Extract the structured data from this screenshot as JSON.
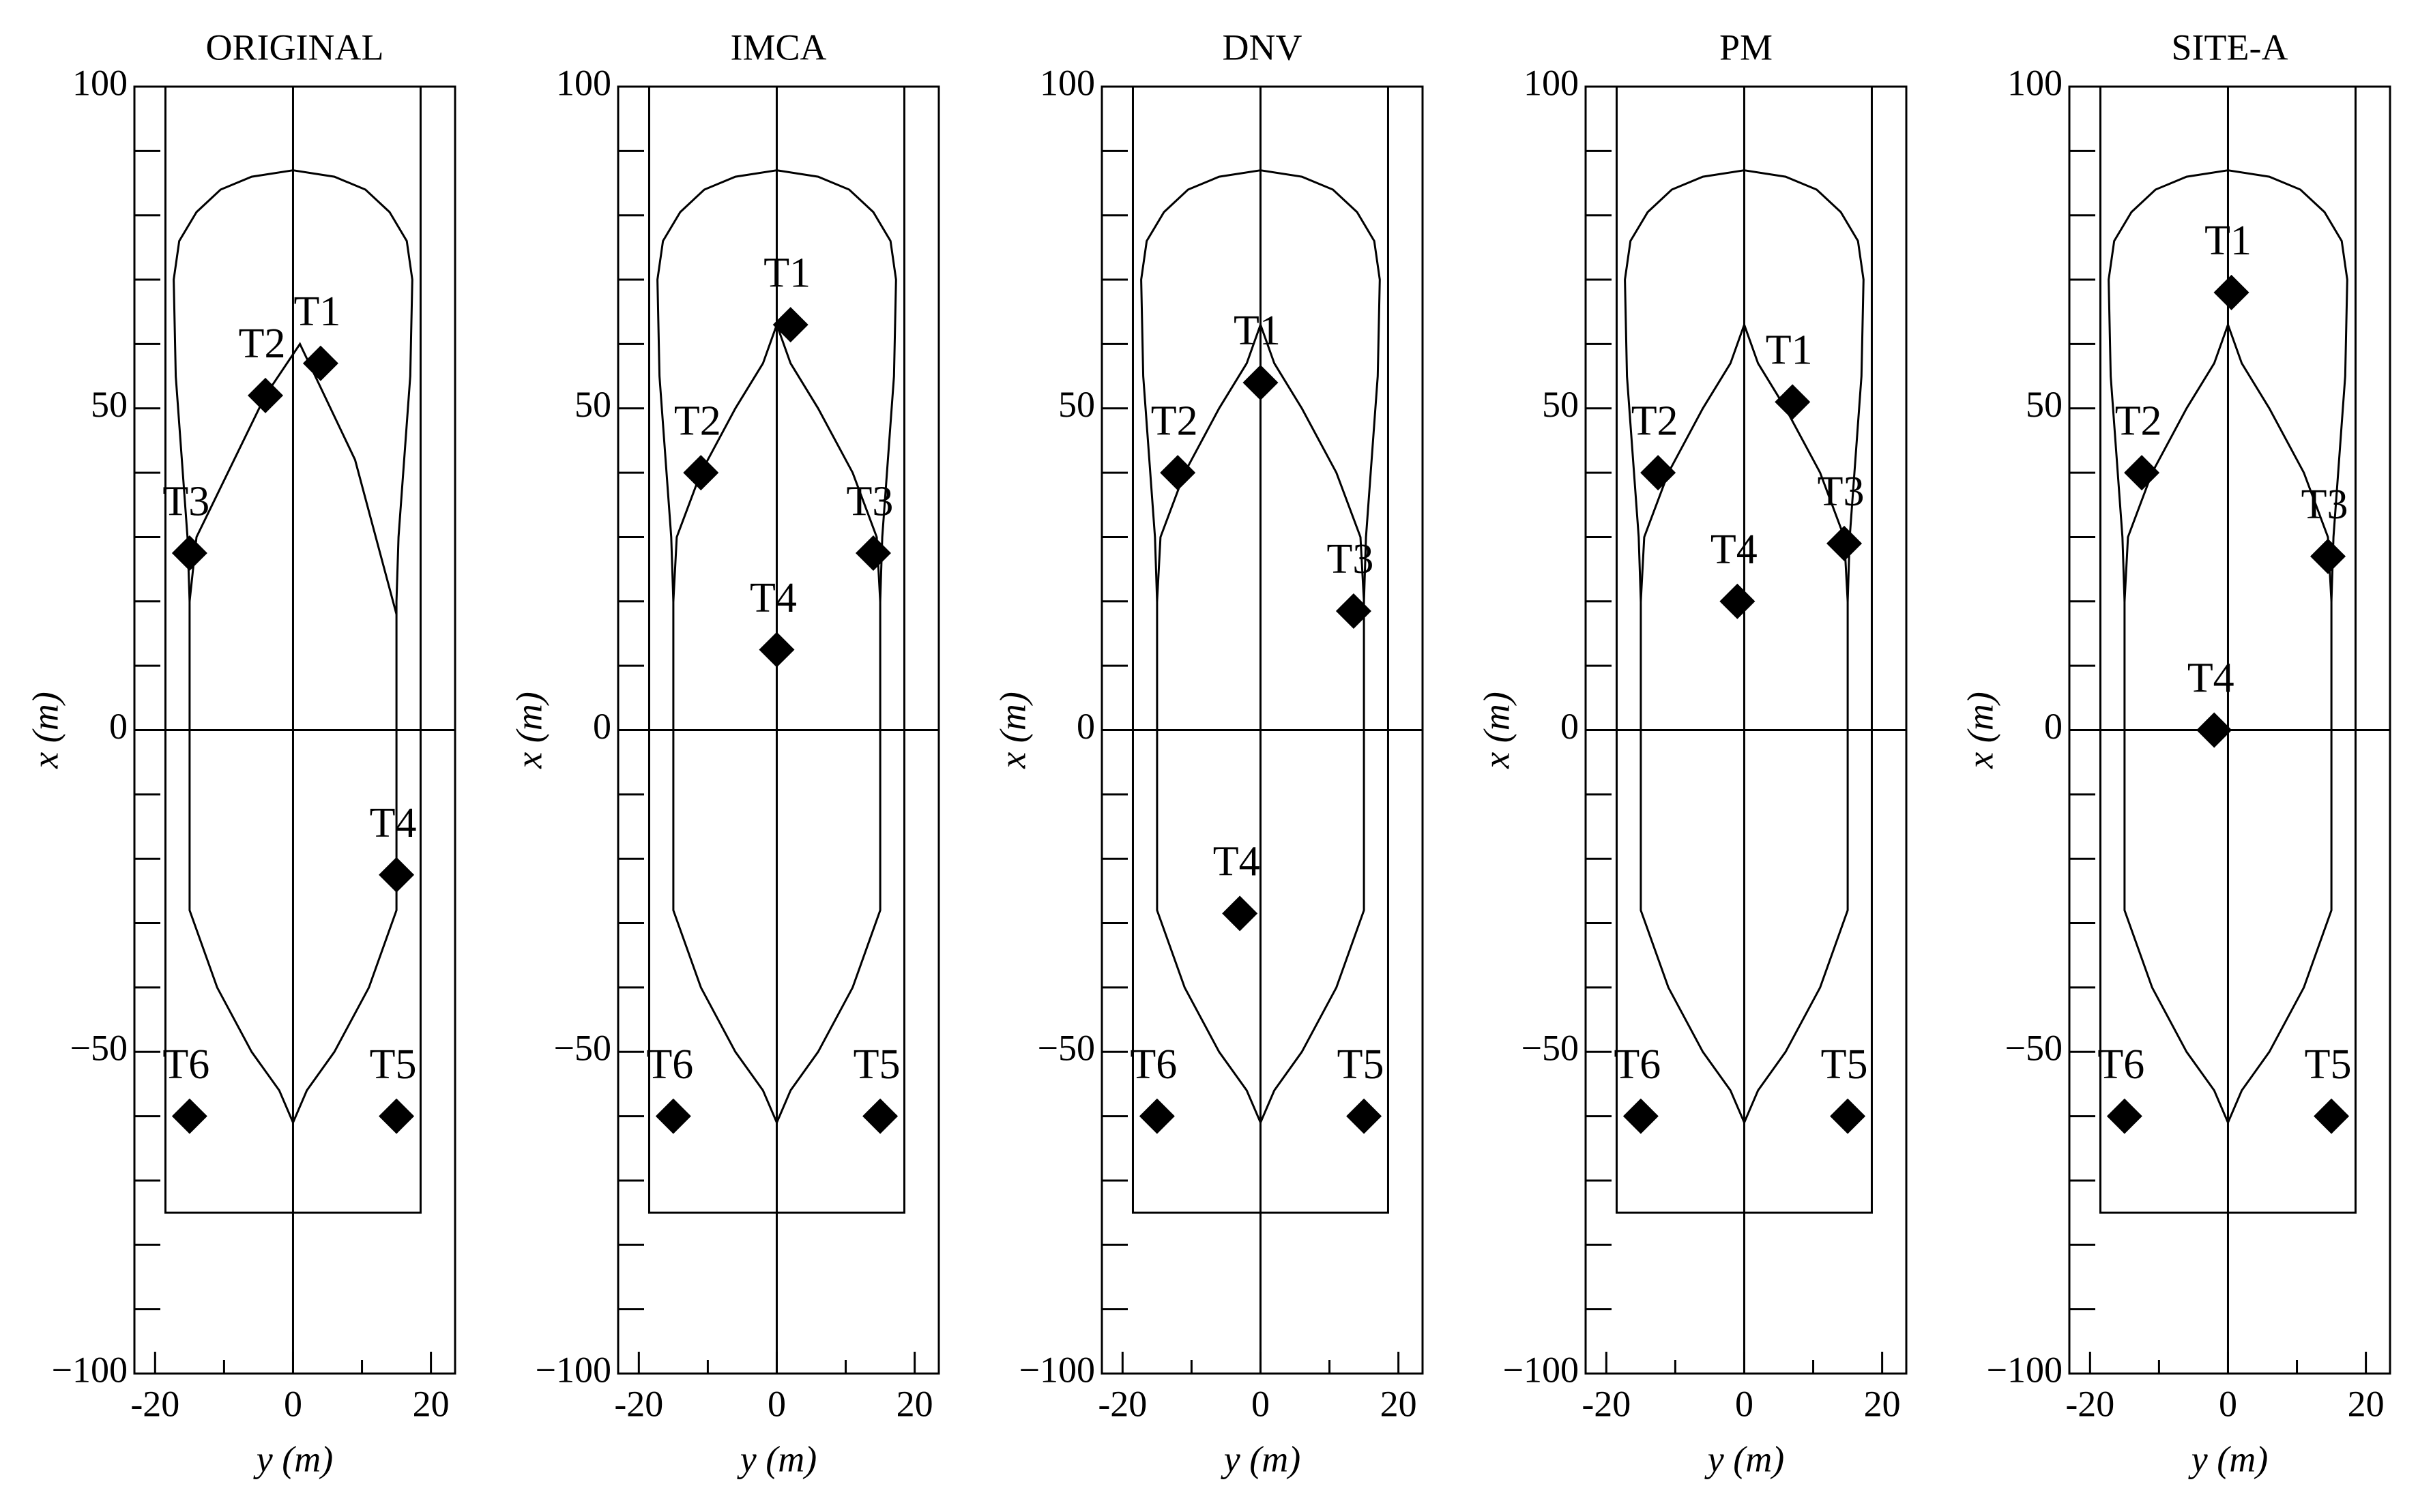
{
  "chart_data": [
    {
      "type": "scatter",
      "title": "ORIGINAL",
      "xlabel": "y (m)",
      "ylabel": "x (m)",
      "color": "#000000",
      "labels": [
        "T1",
        "T2",
        "T3",
        "T4",
        "T5",
        "T6"
      ],
      "x": [
        4,
        -4,
        -15,
        15,
        15,
        -15
      ],
      "values": [
        57,
        52,
        27.5,
        -22.5,
        -60,
        -60
      ],
      "xlim": [
        -23,
        23.5
      ],
      "ylim": [
        -100,
        100
      ],
      "xticks": [
        -20,
        0,
        20
      ],
      "xminorticks": [
        -10,
        10
      ],
      "yticks": [
        {
          "value": -100,
          "label": "−100"
        },
        {
          "value": -50,
          "label": "−50"
        },
        0,
        50,
        100
      ],
      "yminorticks": [
        -90,
        -80,
        -70,
        -60,
        -40,
        -30,
        -20,
        -10,
        10,
        20,
        30,
        40,
        60,
        70,
        80,
        90
      ]
    },
    {
      "type": "scatter",
      "title": "IMCA",
      "xlabel": "y (m)",
      "ylabel": "x (m)",
      "color": "#000000",
      "labels": [
        "T1",
        "T2",
        "T3",
        "T4",
        "T5",
        "T6"
      ],
      "x": [
        2,
        -11,
        14,
        0,
        15,
        -15
      ],
      "values": [
        63,
        40,
        27.5,
        12.5,
        -60,
        -60
      ],
      "xlim": [
        -23,
        23.5
      ],
      "ylim": [
        -100,
        100
      ],
      "xticks": [
        -20,
        0,
        20
      ],
      "xminorticks": [
        -10,
        10
      ],
      "yticks": [
        {
          "value": -100,
          "label": "−100"
        },
        {
          "value": -50,
          "label": "−50"
        },
        0,
        50,
        100
      ],
      "yminorticks": [
        -90,
        -80,
        -70,
        -60,
        -40,
        -30,
        -20,
        -10,
        10,
        20,
        30,
        40,
        60,
        70,
        80,
        90
      ]
    },
    {
      "type": "scatter",
      "title": "DNV",
      "xlabel": "y (m)",
      "ylabel": "x (m)",
      "color": "#000000",
      "labels": [
        "T1",
        "T2",
        "T3",
        "T4",
        "T5",
        "T6"
      ],
      "x": [
        0,
        -12,
        13.5,
        -3,
        15,
        -15
      ],
      "values": [
        54,
        40,
        18.5,
        -28.5,
        -60,
        -60
      ],
      "xlim": [
        -23,
        23.5
      ],
      "ylim": [
        -100,
        100
      ],
      "xticks": [
        -20,
        0,
        20
      ],
      "xminorticks": [
        -10,
        10
      ],
      "yticks": [
        {
          "value": -100,
          "label": "−100"
        },
        {
          "value": -50,
          "label": "−50"
        },
        0,
        50,
        100
      ],
      "yminorticks": [
        -90,
        -80,
        -70,
        -60,
        -40,
        -30,
        -20,
        -10,
        10,
        20,
        30,
        40,
        60,
        70,
        80,
        90
      ]
    },
    {
      "type": "scatter",
      "title": "PM",
      "xlabel": "y (m)",
      "ylabel": "x (m)",
      "color": "#000000",
      "labels": [
        "T1",
        "T2",
        "T3",
        "T4",
        "T5",
        "T6"
      ],
      "x": [
        7,
        -12.5,
        14.5,
        -1,
        15,
        -15
      ],
      "values": [
        51,
        40,
        29,
        20,
        -60,
        -60
      ],
      "xlim": [
        -23,
        23.5
      ],
      "ylim": [
        -100,
        100
      ],
      "xticks": [
        -20,
        0,
        20
      ],
      "xminorticks": [
        -10,
        10
      ],
      "yticks": [
        {
          "value": -100,
          "label": "−100"
        },
        {
          "value": -50,
          "label": "−50"
        },
        0,
        50,
        100
      ],
      "yminorticks": [
        -90,
        -80,
        -70,
        -60,
        -40,
        -30,
        -20,
        -10,
        10,
        20,
        30,
        40,
        60,
        70,
        80,
        90
      ]
    },
    {
      "type": "scatter",
      "title": "SITE-A",
      "xlabel": "y (m)",
      "ylabel": "x (m)",
      "color": "#000000",
      "labels": [
        "T1",
        "T2",
        "T3",
        "T4",
        "T5",
        "T6"
      ],
      "x": [
        0.5,
        -12.5,
        14.5,
        -2,
        15,
        -15
      ],
      "values": [
        68,
        40,
        27,
        0,
        -60,
        -60
      ],
      "xlim": [
        -23,
        23.5
      ],
      "ylim": [
        -100,
        100
      ],
      "xticks": [
        -20,
        0,
        20
      ],
      "xminorticks": [
        -10,
        10
      ],
      "yticks": [
        {
          "value": -100,
          "label": "−100"
        },
        {
          "value": -50,
          "label": "−50"
        },
        0,
        50,
        100
      ],
      "yminorticks": [
        -90,
        -80,
        -70,
        -60,
        -40,
        -30,
        -20,
        -10,
        10,
        20,
        30,
        40,
        60,
        70,
        80,
        90
      ]
    }
  ]
}
